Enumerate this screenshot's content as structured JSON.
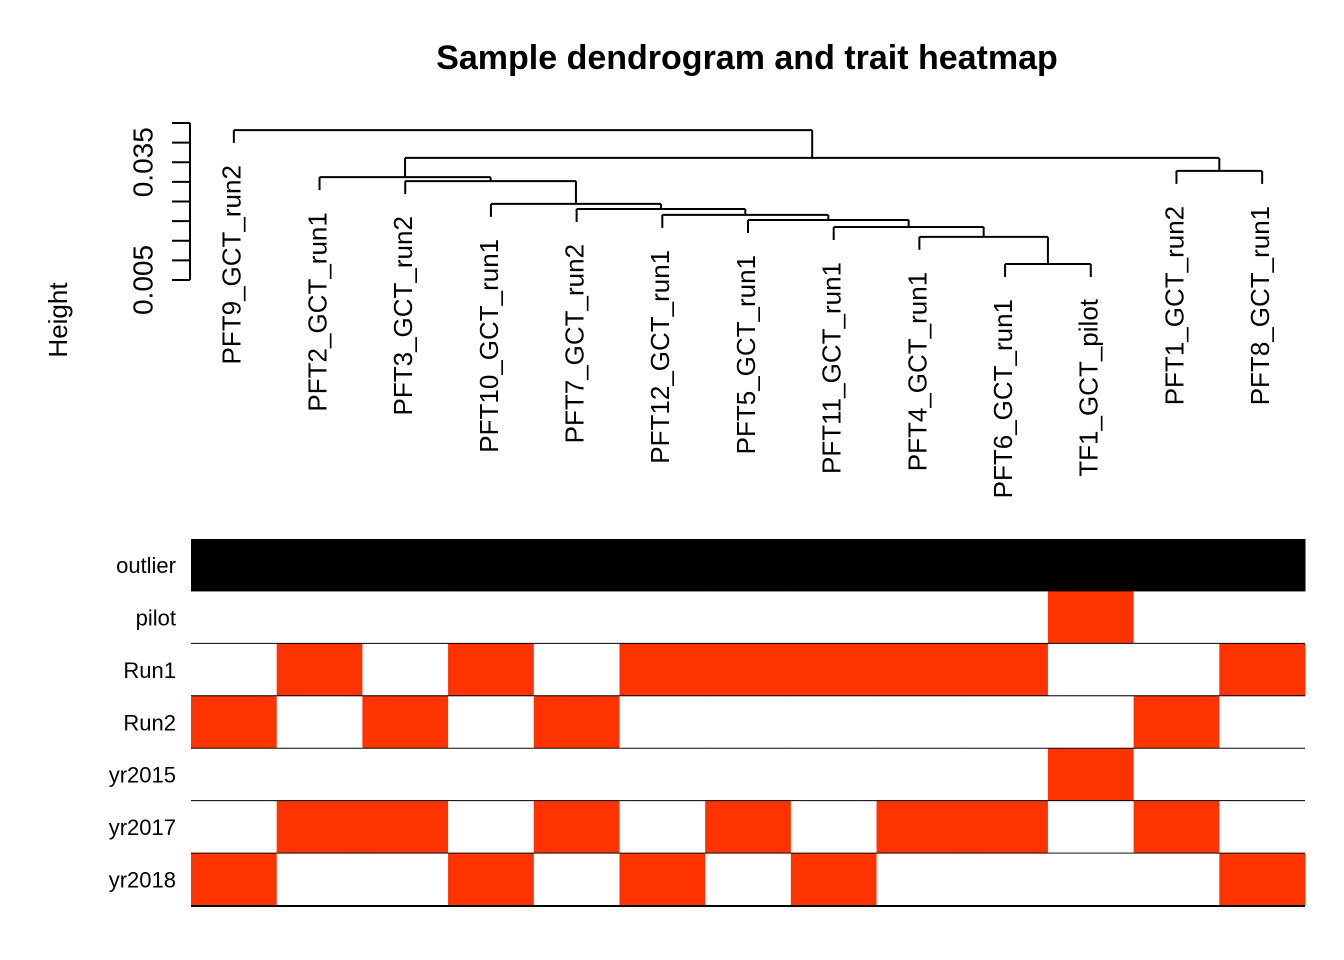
{
  "chart_data": {
    "type": "dendrogram-heatmap",
    "title": "Sample dendrogram and trait heatmap",
    "ylabel": "Height",
    "ylim": [
      0.005,
      0.045
    ],
    "yticks": [
      0.005,
      0.035
    ],
    "yminor_ticks": [
      0.01,
      0.015,
      0.02,
      0.025,
      0.03,
      0.04,
      0.045
    ],
    "leaves": [
      "PFT9_GCT_run2",
      "PFT2_GCT_run1",
      "PFT3_GCT_run2",
      "PFT10_GCT_run1",
      "PFT7_GCT_run2",
      "PFT12_GCT_run1",
      "PFT5_GCT_run1",
      "PFT11_GCT_run1",
      "PFT4_GCT_run1",
      "PFT6_GCT_run1",
      "TF1_GCT_pilot",
      "PFT1_GCT_run2",
      "PFT8_GCT_run1"
    ],
    "merges": [
      [
        -10,
        -11
      ],
      [
        -9,
        1
      ],
      [
        -8,
        2
      ],
      [
        -7,
        3
      ],
      [
        -6,
        4
      ],
      [
        -5,
        5
      ],
      [
        -4,
        6
      ],
      [
        -3,
        7
      ],
      [
        -2,
        8
      ],
      [
        -12,
        -13
      ],
      [
        9,
        10
      ],
      [
        -1,
        11
      ]
    ],
    "heights": [
      0.00908,
      0.016,
      0.0185,
      0.0203,
      0.0216,
      0.0231,
      0.0244,
      0.0302,
      0.0312,
      0.0328,
      0.0361,
      0.0432
    ],
    "series": [
      {
        "name": "outlier",
        "palette": [
          "#000000",
          "#000000"
        ],
        "values": [
          0,
          0,
          0,
          0,
          0,
          0,
          0,
          0,
          0,
          0,
          0,
          0,
          0
        ]
      },
      {
        "name": "pilot",
        "palette": [
          "#ffffff",
          "#ff3300"
        ],
        "values": [
          0,
          0,
          0,
          0,
          0,
          0,
          0,
          0,
          0,
          0,
          1,
          0,
          0
        ]
      },
      {
        "name": "Run1",
        "palette": [
          "#ffffff",
          "#ff3300"
        ],
        "values": [
          0,
          1,
          0,
          1,
          0,
          1,
          1,
          1,
          1,
          1,
          0,
          0,
          1
        ]
      },
      {
        "name": "Run2",
        "palette": [
          "#ffffff",
          "#ff3300"
        ],
        "values": [
          1,
          0,
          1,
          0,
          1,
          0,
          0,
          0,
          0,
          0,
          0,
          1,
          0
        ]
      },
      {
        "name": "yr2015",
        "palette": [
          "#ffffff",
          "#ff3300"
        ],
        "values": [
          0,
          0,
          0,
          0,
          0,
          0,
          0,
          0,
          0,
          0,
          1,
          0,
          0
        ]
      },
      {
        "name": "yr2017",
        "palette": [
          "#ffffff",
          "#ff3300"
        ],
        "values": [
          0,
          1,
          1,
          0,
          1,
          0,
          1,
          0,
          1,
          1,
          0,
          1,
          0
        ]
      },
      {
        "name": "yr2018",
        "palette": [
          "#ffffff",
          "#ff3300"
        ],
        "values": [
          1,
          0,
          0,
          1,
          0,
          1,
          0,
          1,
          0,
          0,
          0,
          0,
          1
        ]
      }
    ]
  }
}
